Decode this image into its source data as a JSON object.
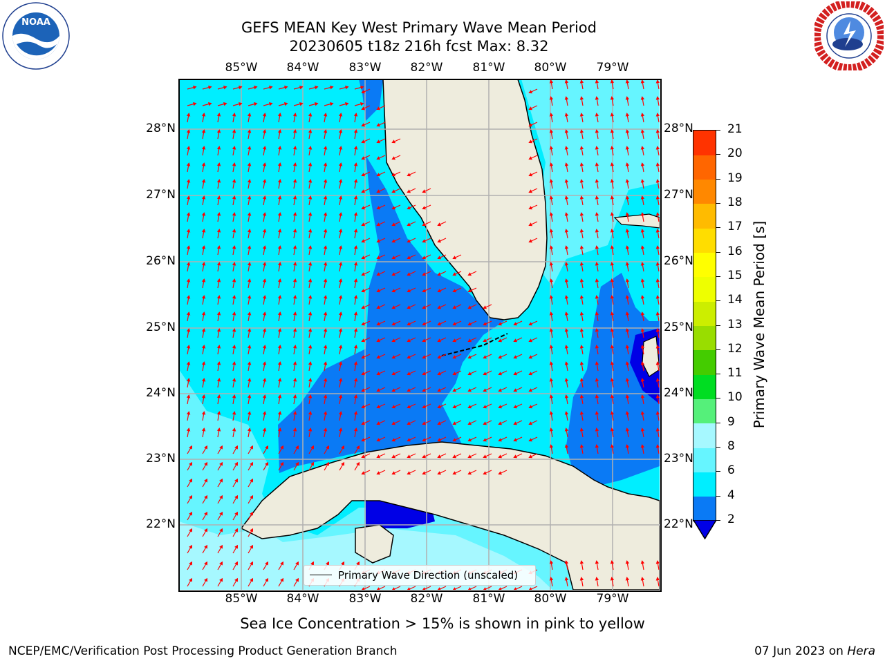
{
  "header": {
    "title_line1": "GEFS MEAN Key West Primary Wave Mean Period",
    "title_line2": "20230605 t18z 216h fcst   Max: 8.32"
  },
  "logos": {
    "noaa": {
      "name": "NOAA",
      "icon": "noaa-logo-icon"
    },
    "nws": {
      "name": "NATIONAL WEATHER SERVICE",
      "icon": "nws-logo-icon"
    }
  },
  "map": {
    "lon_ticks": [
      "85°W",
      "84°W",
      "83°W",
      "82°W",
      "81°W",
      "80°W",
      "79°W"
    ],
    "lat_ticks": [
      "28°N",
      "27°N",
      "26°N",
      "25°N",
      "24°N",
      "23°N",
      "22°N"
    ],
    "legend_label": "Primary Wave Direction (unscaled)",
    "colors": {
      "land": "#eeecdd",
      "coast": "#000000",
      "grid": "#b0b0b0",
      "arrow": "#ff0000",
      "band_2_4": "#0a7af5",
      "band_4_6": "#00eeff",
      "band_6_8": "#66f5ff",
      "band_8_9": "#a6f8ff",
      "band_lt2": "#0000e6"
    }
  },
  "colorbar": {
    "title": "Primary Wave Mean Period [s]",
    "labels": [
      "2",
      "4",
      "6",
      "8",
      "9",
      "10",
      "11",
      "12",
      "13",
      "14",
      "15",
      "16",
      "17",
      "18",
      "19",
      "20",
      "21"
    ],
    "colors": [
      "#0a7af5",
      "#00eeff",
      "#66f5ff",
      "#a6f8ff",
      "#55f07a",
      "#00dd22",
      "#44cc00",
      "#99dd00",
      "#ccee00",
      "#eeff00",
      "#ffff00",
      "#ffdd00",
      "#ffbb00",
      "#ff8800",
      "#ff6600",
      "#ff3300",
      "#ff0000"
    ],
    "extend_color": "#0000e6"
  },
  "footer": {
    "note": "Sea Ice Concentration > 15% is shown in pink to yellow",
    "left": "NCEP/EMC/Verification Post Processing Product Generation Branch",
    "right_prefix": "07 Jun 2023 on ",
    "right_host": "Hera"
  }
}
